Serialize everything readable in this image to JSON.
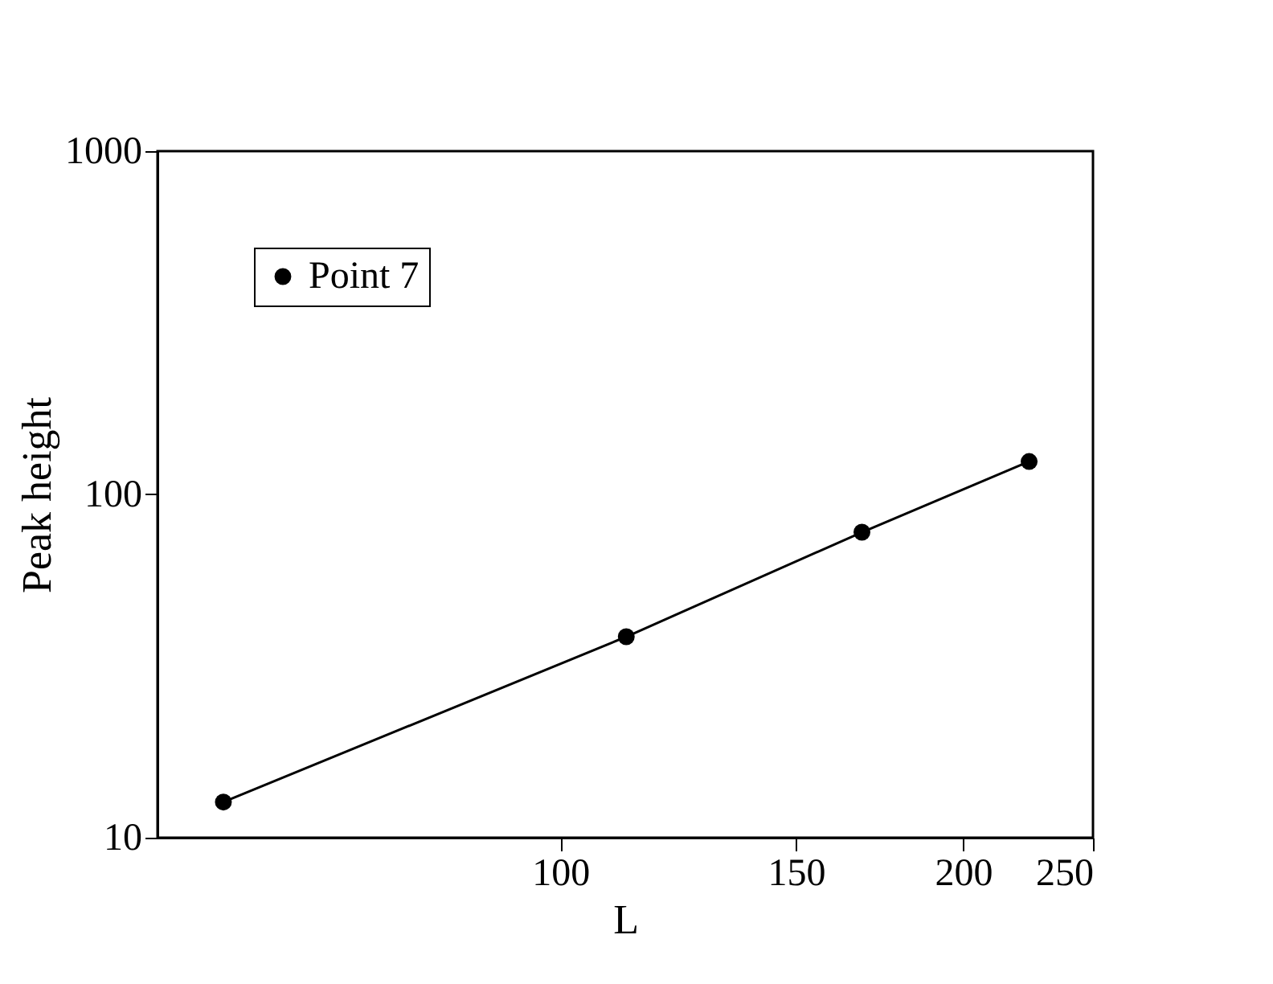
{
  "chart_data": {
    "type": "line",
    "xlabel": "L",
    "ylabel": "Peak height",
    "x": [
      56,
      112,
      168,
      224
    ],
    "series": [
      {
        "name": "Point 7",
        "color": "#000000",
        "values": [
          12.7,
          38.5,
          77.6,
          124.7
        ]
      }
    ],
    "xlim": [
      50,
      250
    ],
    "xticks": [
      100,
      150,
      200,
      250
    ],
    "ylim": [
      10,
      1000
    ],
    "yticks": [
      10,
      100,
      1000
    ],
    "log": "xy",
    "grid": false,
    "legend": "top left",
    "marker": "circle",
    "line_style": "solid"
  }
}
